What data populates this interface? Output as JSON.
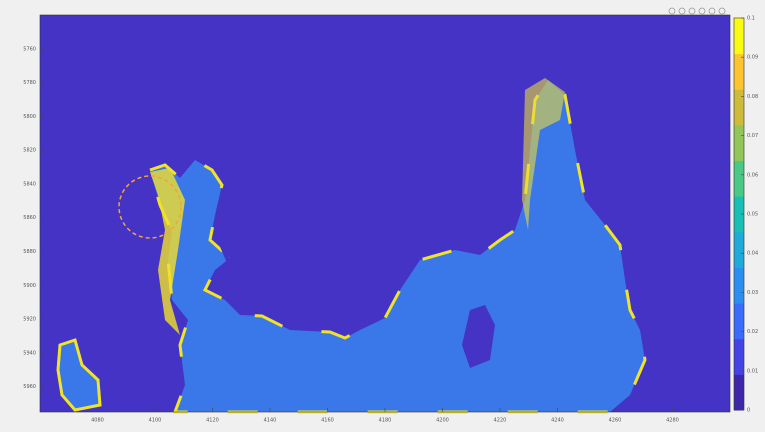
{
  "chart_data": {
    "type": "heatmap",
    "xlim": [
      4060,
      4300
    ],
    "xticks": [
      4080,
      4100,
      4120,
      4140,
      4160,
      4180,
      4200,
      4220,
      4240,
      4260,
      4280
    ],
    "ylim": [
      5740,
      5975
    ],
    "yticks": [
      5760,
      5780,
      5800,
      5820,
      5840,
      5860,
      5880,
      5900,
      5920,
      5940,
      5960
    ],
    "ydir": "reverse",
    "clim": [
      0,
      0.1
    ],
    "cticks": [
      0,
      0.01,
      0.02,
      0.03,
      0.04,
      0.05,
      0.06,
      0.07,
      0.08,
      0.09,
      0.1
    ],
    "colormap": [
      "#3e26a8",
      "#4443e6",
      "#3a6cfc",
      "#2c8ef0",
      "#1eabd9",
      "#18bfb4",
      "#49c886",
      "#91c65a",
      "#cfbb3a",
      "#fbc430",
      "#f9fb15"
    ]
  }
}
